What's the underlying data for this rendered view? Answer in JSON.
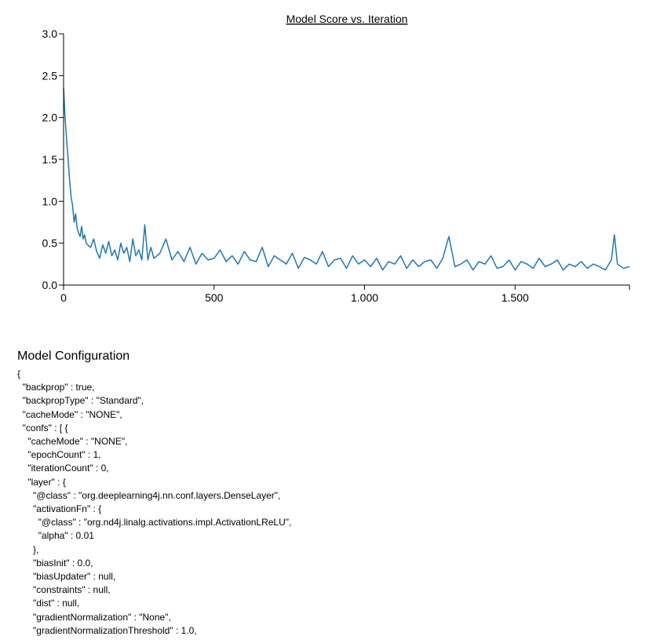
{
  "colors": {
    "line": "#1f77b4",
    "axis": "#000000",
    "text": "#000000",
    "background": "#ffffff"
  },
  "chart_data": {
    "type": "line",
    "title": "Model Score vs. Iteration",
    "xlabel": "",
    "ylabel": "",
    "xlim": [
      0,
      1880
    ],
    "ylim": [
      0,
      3.0
    ],
    "x_ticks": [
      0,
      500,
      1000,
      1500
    ],
    "x_tick_labels": [
      "0",
      "500",
      "1.000",
      "1.500"
    ],
    "y_ticks": [
      0,
      0.5,
      1.0,
      1.5,
      2.0,
      2.5,
      3.0
    ],
    "y_tick_labels": [
      "0.0",
      "0.5",
      "1.0",
      "1.5",
      "2.0",
      "2.5",
      "3.0"
    ],
    "grid": false,
    "legend": "none",
    "series": [
      {
        "x": [
          0,
          5,
          10,
          15,
          20,
          25,
          30,
          35,
          40,
          45,
          50,
          55,
          60,
          65,
          70,
          75,
          80,
          90,
          100,
          110,
          120,
          130,
          140,
          150,
          160,
          170,
          180,
          190,
          200,
          210,
          220,
          230,
          240,
          250,
          260,
          270,
          280,
          290,
          300,
          320,
          340,
          360,
          380,
          400,
          420,
          440,
          460,
          480,
          500,
          520,
          540,
          560,
          580,
          600,
          620,
          640,
          660,
          680,
          700,
          720,
          740,
          760,
          780,
          800,
          820,
          840,
          860,
          880,
          900,
          920,
          940,
          960,
          980,
          1000,
          1020,
          1040,
          1060,
          1080,
          1100,
          1120,
          1140,
          1160,
          1180,
          1200,
          1220,
          1240,
          1260,
          1280,
          1300,
          1320,
          1340,
          1360,
          1380,
          1400,
          1420,
          1440,
          1460,
          1480,
          1500,
          1520,
          1540,
          1560,
          1580,
          1600,
          1620,
          1640,
          1660,
          1680,
          1700,
          1720,
          1740,
          1760,
          1780,
          1800,
          1820,
          1830,
          1840,
          1860,
          1880
        ],
        "values": [
          2.35,
          2.0,
          1.75,
          1.5,
          1.25,
          1.05,
          0.95,
          0.75,
          0.85,
          0.68,
          0.62,
          0.58,
          0.7,
          0.55,
          0.6,
          0.5,
          0.48,
          0.45,
          0.55,
          0.4,
          0.32,
          0.48,
          0.38,
          0.52,
          0.35,
          0.42,
          0.3,
          0.5,
          0.38,
          0.45,
          0.28,
          0.55,
          0.35,
          0.42,
          0.3,
          0.72,
          0.3,
          0.45,
          0.32,
          0.38,
          0.55,
          0.3,
          0.4,
          0.28,
          0.45,
          0.25,
          0.38,
          0.3,
          0.32,
          0.42,
          0.28,
          0.35,
          0.25,
          0.4,
          0.3,
          0.28,
          0.45,
          0.22,
          0.35,
          0.3,
          0.25,
          0.38,
          0.2,
          0.33,
          0.3,
          0.25,
          0.4,
          0.22,
          0.3,
          0.32,
          0.2,
          0.35,
          0.25,
          0.3,
          0.22,
          0.32,
          0.18,
          0.28,
          0.25,
          0.35,
          0.2,
          0.3,
          0.22,
          0.28,
          0.3,
          0.2,
          0.32,
          0.58,
          0.22,
          0.25,
          0.3,
          0.18,
          0.28,
          0.25,
          0.35,
          0.2,
          0.22,
          0.3,
          0.18,
          0.28,
          0.25,
          0.2,
          0.32,
          0.22,
          0.25,
          0.3,
          0.18,
          0.25,
          0.22,
          0.28,
          0.2,
          0.25,
          0.22,
          0.18,
          0.3,
          0.6,
          0.25,
          0.2,
          0.22
        ]
      }
    ]
  },
  "config": {
    "heading": "Model Configuration",
    "lines": [
      "{",
      "  \"backprop\" : true,",
      "  \"backpropType\" : \"Standard\",",
      "  \"cacheMode\" : \"NONE\",",
      "  \"confs\" : [ {",
      "    \"cacheMode\" : \"NONE\",",
      "    \"epochCount\" : 1,",
      "    \"iterationCount\" : 0,",
      "    \"layer\" : {",
      "      \"@class\" : \"org.deeplearning4j.nn.conf.layers.DenseLayer\",",
      "      \"activationFn\" : {",
      "        \"@class\" : \"org.nd4j.linalg.activations.impl.ActivationLReLU\",",
      "        \"alpha\" : 0.01",
      "      },",
      "      \"biasInit\" : 0.0,",
      "      \"biasUpdater\" : null,",
      "      \"constraints\" : null,",
      "      \"dist\" : null,",
      "      \"gradientNormalization\" : \"None\",",
      "      \"gradientNormalizationThreshold\" : 1.0,"
    ]
  }
}
